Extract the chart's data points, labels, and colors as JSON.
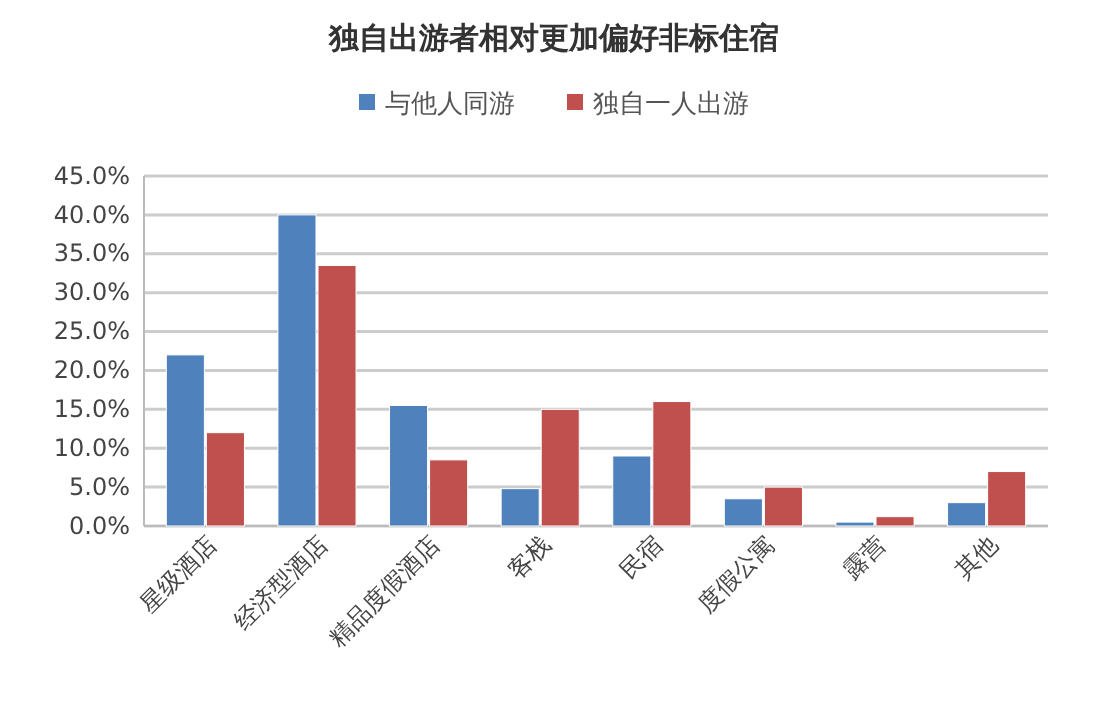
{
  "chart_data": {
    "type": "bar",
    "title": "独自出游者相对更加偏好非标住宿",
    "categories": [
      "星级酒店",
      "经济型酒店",
      "精品度假酒店",
      "客栈",
      "民宿",
      "度假公寓",
      "露营",
      "其他"
    ],
    "series": [
      {
        "name": "与他人同游",
        "color": "#4f81bd",
        "values": [
          22,
          40,
          15.5,
          4.8,
          9,
          3.5,
          0.5,
          3
        ]
      },
      {
        "name": "独自一人出游",
        "color": "#c0504d",
        "values": [
          12,
          33.5,
          8.5,
          15,
          16,
          5,
          1.2,
          7
        ]
      }
    ],
    "ylim": [
      0,
      45
    ],
    "yticks": [
      {
        "value": 0,
        "label": "0.0%"
      },
      {
        "value": 5,
        "label": "5.0%"
      },
      {
        "value": 10,
        "label": "10.0%"
      },
      {
        "value": 15,
        "label": "15.0%"
      },
      {
        "value": 20,
        "label": "20.0%"
      },
      {
        "value": 25,
        "label": "25.0%"
      },
      {
        "value": 30,
        "label": "30.0%"
      },
      {
        "value": 35,
        "label": "35.0%"
      },
      {
        "value": 40,
        "label": "40.0%"
      },
      {
        "value": 45,
        "label": "45.0%"
      }
    ],
    "grid": "y",
    "legend": "top"
  }
}
